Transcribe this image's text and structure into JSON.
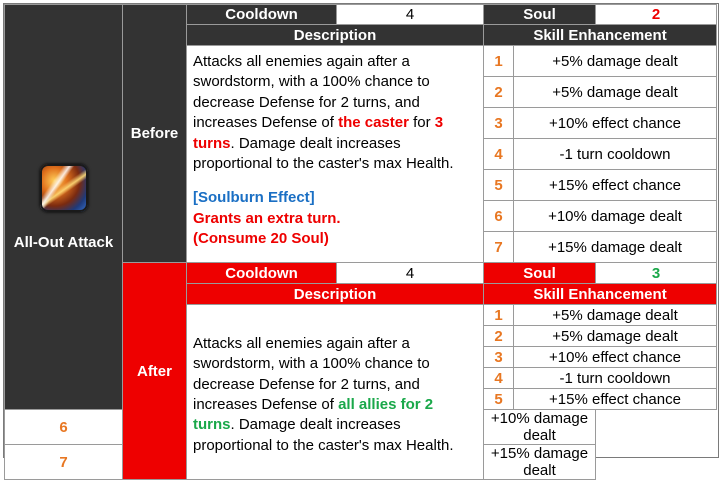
{
  "skill": {
    "name": "All-Out Attack",
    "icon": "sword-storm-icon"
  },
  "labels": {
    "cooldown": "Cooldown",
    "soul": "Soul",
    "description": "Description",
    "enhancement": "Skill Enhancement"
  },
  "before": {
    "label": "Before",
    "cooldown": "4",
    "soul": "2",
    "desc_part1": "Attacks all enemies again after a swordstorm, with a 100% chance to decrease Defense for 2 turns, and increases Defense of ",
    "desc_highlight1": "the caster",
    "desc_part2": " for ",
    "desc_highlight2": "3 turns",
    "desc_part3": ". Damage dealt increases proportional to the caster's max Health.",
    "soulburn_title": "[Soulburn Effect]",
    "soulburn_line1": "Grants an extra turn.",
    "soulburn_line2": "(Consume 20 Soul)",
    "enhancements": [
      {
        "n": "1",
        "text": "+5% damage dealt"
      },
      {
        "n": "2",
        "text": "+5% damage dealt"
      },
      {
        "n": "3",
        "text": "+10% effect chance"
      },
      {
        "n": "4",
        "text": "-1 turn cooldown"
      },
      {
        "n": "5",
        "text": "+15% effect chance"
      },
      {
        "n": "6",
        "text": "+10% damage dealt"
      },
      {
        "n": "7",
        "text": "+15% damage dealt"
      }
    ]
  },
  "after": {
    "label": "After",
    "cooldown": "4",
    "soul": "3",
    "desc_part1": "Attacks all enemies again after a swordstorm, with a 100% chance to decrease Defense for 2 turns, and increases Defense of ",
    "desc_highlight1": "all allies for 2 turns",
    "desc_part2": ". Damage dealt increases proportional to the caster's max Health.",
    "enhancements": [
      {
        "n": "1",
        "text": "+5% damage dealt"
      },
      {
        "n": "2",
        "text": "+5% damage dealt"
      },
      {
        "n": "3",
        "text": "+10% effect chance"
      },
      {
        "n": "4",
        "text": "-1 turn cooldown"
      },
      {
        "n": "5",
        "text": "+15% effect chance"
      },
      {
        "n": "6",
        "text": "+10% damage dealt"
      },
      {
        "n": "7",
        "text": "+15% damage dealt"
      }
    ]
  },
  "colors": {
    "dark_header": "#333333",
    "red_header": "#ee0000",
    "soul_before": "#ee0000",
    "soul_after": "#1aa84a",
    "enh_number": "#e87722",
    "soulburn_title": "#1a6fc4"
  }
}
